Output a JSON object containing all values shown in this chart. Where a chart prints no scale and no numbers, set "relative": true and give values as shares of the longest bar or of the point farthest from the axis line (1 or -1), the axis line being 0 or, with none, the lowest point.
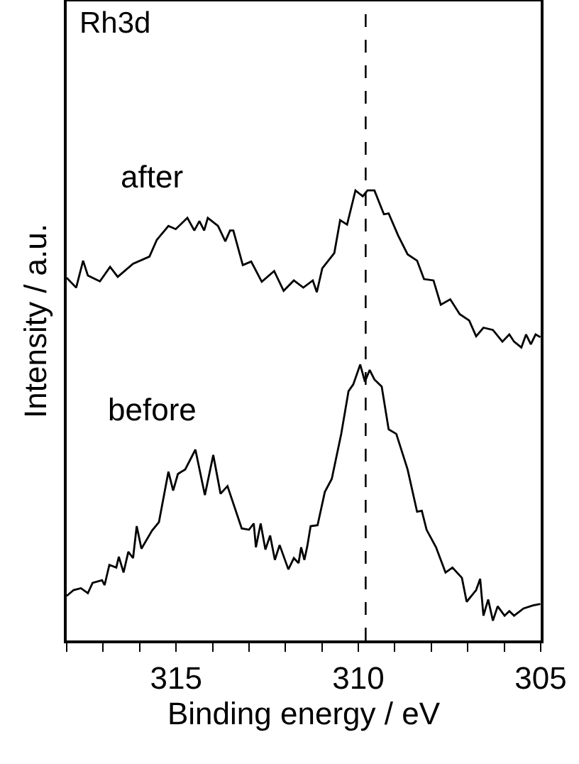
{
  "chart_data": {
    "type": "line",
    "title": "Rh3d",
    "xlabel": "Binding energy / eV",
    "ylabel": "Intensity / a.u.",
    "relative": true,
    "xlim": [
      318,
      305
    ],
    "xticks": [
      {
        "value": 318,
        "label": null
      },
      {
        "value": 317,
        "label": null
      },
      {
        "value": 316,
        "label": null
      },
      315,
      {
        "value": 314,
        "label": null
      },
      {
        "value": 313,
        "label": null
      },
      {
        "value": 312,
        "label": null
      },
      {
        "value": 311,
        "label": null
      },
      310,
      {
        "value": 309,
        "label": null
      },
      {
        "value": 308,
        "label": null
      },
      {
        "value": 307,
        "label": null
      },
      {
        "value": 306,
        "label": null
      },
      305
    ],
    "tick_labels": "x",
    "grid": false,
    "legend": false,
    "marker": "none",
    "line_style": "solid",
    "ref_lines": [
      {
        "axis": "x",
        "value": 309.8,
        "color": "#000000",
        "line_style": "dashed"
      }
    ],
    "series": [
      {
        "name": "after",
        "color": "#000000",
        "x": [
          318.0,
          317.74,
          317.55,
          317.42,
          317.09,
          316.81,
          316.6,
          316.18,
          315.73,
          315.53,
          315.21,
          315.01,
          314.69,
          314.5,
          314.36,
          314.23,
          314.13,
          313.85,
          313.65,
          313.52,
          313.43,
          313.17,
          312.94,
          312.65,
          312.31,
          312.05,
          311.77,
          311.51,
          311.25,
          311.14,
          310.99,
          310.66,
          310.5,
          310.31,
          310.08,
          309.88,
          309.75,
          309.56,
          309.3,
          309.17,
          308.91,
          308.65,
          308.39,
          308.2,
          307.94,
          307.74,
          307.48,
          307.22,
          306.96,
          306.77,
          306.57,
          306.31,
          306.05,
          305.86,
          305.73,
          305.53,
          305.4,
          305.27,
          305.14,
          305.01
        ],
        "values": [
          0.806,
          0.784,
          0.844,
          0.811,
          0.798,
          0.83,
          0.808,
          0.837,
          0.853,
          0.89,
          0.921,
          0.914,
          0.939,
          0.911,
          0.932,
          0.911,
          0.939,
          0.921,
          0.887,
          0.911,
          0.911,
          0.834,
          0.842,
          0.797,
          0.821,
          0.777,
          0.8,
          0.784,
          0.8,
          0.774,
          0.827,
          0.861,
          0.934,
          0.924,
          1.0,
          0.987,
          1.0,
          1.0,
          0.947,
          0.949,
          0.9,
          0.858,
          0.844,
          0.803,
          0.8,
          0.746,
          0.758,
          0.725,
          0.711,
          0.676,
          0.695,
          0.69,
          0.664,
          0.68,
          0.664,
          0.651,
          0.68,
          0.658,
          0.68,
          0.674
        ]
      },
      {
        "name": "before",
        "color": "#000000",
        "x": [
          318.0,
          317.81,
          317.61,
          317.42,
          317.29,
          317.03,
          316.96,
          316.83,
          316.64,
          316.57,
          316.44,
          316.31,
          316.18,
          316.08,
          315.95,
          315.66,
          315.47,
          315.21,
          315.08,
          314.95,
          314.75,
          314.47,
          314.21,
          313.98,
          313.78,
          313.59,
          313.2,
          313.0,
          312.87,
          312.81,
          312.68,
          312.55,
          312.42,
          312.29,
          312.16,
          311.92,
          311.77,
          311.64,
          311.57,
          311.48,
          311.4,
          311.31,
          311.12,
          310.92,
          310.73,
          310.47,
          310.27,
          310.14,
          309.95,
          309.82,
          309.69,
          309.56,
          309.36,
          309.17,
          308.96,
          308.65,
          308.39,
          308.26,
          308.13,
          307.87,
          307.61,
          307.42,
          307.16,
          307.03,
          306.77,
          306.66,
          306.57,
          306.44,
          306.31,
          306.18,
          305.99,
          305.86,
          305.73,
          305.47,
          305.21,
          305.01
        ],
        "values": [
          0.099,
          0.112,
          0.116,
          0.105,
          0.128,
          0.134,
          0.123,
          0.168,
          0.162,
          0.186,
          0.151,
          0.197,
          0.183,
          0.254,
          0.204,
          0.244,
          0.263,
          0.375,
          0.333,
          0.37,
          0.38,
          0.424,
          0.323,
          0.412,
          0.326,
          0.343,
          0.249,
          0.246,
          0.26,
          0.207,
          0.26,
          0.202,
          0.233,
          0.179,
          0.212,
          0.158,
          0.183,
          0.172,
          0.207,
          0.179,
          0.21,
          0.254,
          0.256,
          0.33,
          0.359,
          0.459,
          0.554,
          0.569,
          0.613,
          0.575,
          0.601,
          0.58,
          0.564,
          0.469,
          0.459,
          0.38,
          0.286,
          0.288,
          0.246,
          0.207,
          0.151,
          0.162,
          0.139,
          0.086,
          0.112,
          0.137,
          0.055,
          0.091,
          0.044,
          0.076,
          0.055,
          0.065,
          0.055,
          0.071,
          0.078,
          0.081
        ]
      }
    ]
  }
}
